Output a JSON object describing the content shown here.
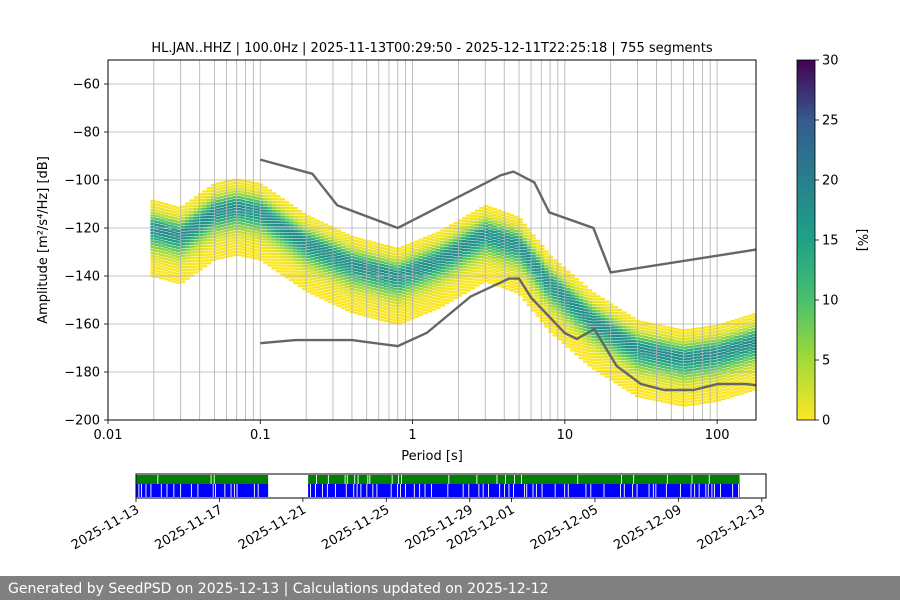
{
  "chart_data": [
    {
      "type": "heatmap",
      "title": "HL.JAN..HHZ | 100.0Hz | 2025-11-13T00:29:50 - 2025-12-11T22:25:18 | 755 segments",
      "xlabel": "Period [s]",
      "ylabel": "Amplitude [m²/s⁴/Hz] [dB]",
      "x_scale": "log",
      "xlim": [
        0.01,
        180
      ],
      "ylim": [
        -200,
        -50
      ],
      "x_ticks": [
        "0.01",
        "0.1",
        "1",
        "10",
        "100"
      ],
      "y_ticks": [
        "−200",
        "−180",
        "−160",
        "−140",
        "−120",
        "−100",
        "−80",
        "−60"
      ],
      "grid": true,
      "colorbar": {
        "label": "[%]",
        "min": 0,
        "max": 30,
        "ticks": [
          "0",
          "5",
          "10",
          "15",
          "20",
          "25",
          "30"
        ],
        "colormap": "viridis"
      },
      "psd_mode_curve": {
        "x": [
          0.02,
          0.03,
          0.05,
          0.07,
          0.1,
          0.2,
          0.4,
          0.8,
          1.5,
          3,
          5,
          8,
          15,
          30,
          60,
          100,
          180
        ],
        "y": [
          -120,
          -123,
          -113,
          -111,
          -113,
          -126,
          -135,
          -140,
          -133,
          -122,
          -127,
          -143,
          -158,
          -170,
          -174,
          -172,
          -167
        ]
      },
      "psd_spread": {
        "upper_offset_db": 12,
        "lower_offset_db": 20
      },
      "noise_models": [
        {
          "name": "high-noise-model",
          "x": [
            0.1,
            0.22,
            0.32,
            0.8,
            3.8,
            4.6,
            6.3,
            7.9,
            15.4,
            20,
            180
          ],
          "y": [
            -91.5,
            -97.4,
            -110.5,
            -120,
            -98,
            -96.5,
            -101,
            -113.5,
            -120,
            -138.5,
            -129
          ]
        },
        {
          "name": "low-noise-model",
          "x": [
            0.1,
            0.17,
            0.4,
            0.8,
            1.24,
            2.4,
            4.3,
            5,
            6,
            10,
            12,
            15.6,
            21.9,
            31.6,
            45,
            70,
            101,
            154,
            180
          ],
          "y": [
            -168,
            -166.7,
            -166.7,
            -169.2,
            -163.7,
            -148.6,
            -141.1,
            -141.1,
            -149,
            -163.8,
            -166.2,
            -162.1,
            -177.5,
            -185,
            -187.5,
            -187.5,
            -185,
            -185,
            -185.5
          ]
        }
      ]
    },
    {
      "type": "timeline",
      "x_start": "2025-11-13",
      "x_end": "2025-12-13",
      "x_ticks": [
        "2025-11-13",
        "2025-11-17",
        "2025-11-21",
        "2025-11-25",
        "2025-11-29",
        "2025-12-01",
        "2025-12-05",
        "2025-12-09",
        "2025-12-13"
      ],
      "data_available": [
        [
          "2025-11-13T00:29",
          "2025-11-19T08:00"
        ],
        [
          "2025-11-21T06:00",
          "2025-12-11T22:25"
        ]
      ],
      "colors": {
        "used": "#0000ff",
        "available": "#008000"
      }
    }
  ],
  "footer": "Generated by SeedPSD on 2025-12-13 | Calculations updated on 2025-12-12"
}
